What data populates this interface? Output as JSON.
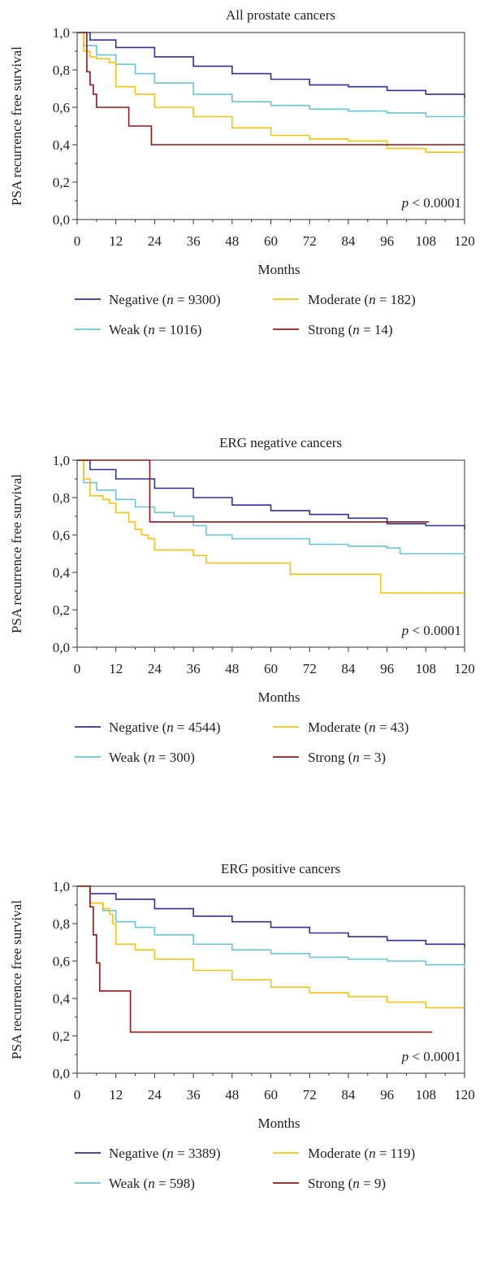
{
  "chart_data": [
    {
      "type": "line",
      "title": "All prostate cancers",
      "xlabel": "Months",
      "ylabel": "PSA recurrence free survival",
      "xlim": [
        0,
        120
      ],
      "ylim": [
        0,
        1
      ],
      "xticks": [
        "0",
        "12",
        "24",
        "36",
        "48",
        "60",
        "72",
        "84",
        "96",
        "108",
        "120"
      ],
      "yticks": [
        "0,0",
        "0,2",
        "0,4",
        "0,6",
        "0,8",
        "1,0"
      ],
      "pvalue": {
        "symbol": "p",
        "text": "< 0.0001"
      },
      "legend_placement": "bottom",
      "series": [
        {
          "name": "Negative",
          "n_label": "n",
          "n_text": "= 9300",
          "color": "#2e3192",
          "x": [
            0,
            4,
            12,
            24,
            36,
            48,
            60,
            72,
            84,
            96,
            108,
            120
          ],
          "y": [
            1.0,
            0.96,
            0.92,
            0.87,
            0.82,
            0.78,
            0.75,
            0.72,
            0.71,
            0.69,
            0.67,
            0.65
          ]
        },
        {
          "name": "Weak",
          "n_label": "n",
          "n_text": "= 1016",
          "color": "#6cc5d3",
          "x": [
            0,
            2,
            6,
            12,
            18,
            24,
            36,
            48,
            60,
            72,
            84,
            96,
            108,
            120
          ],
          "y": [
            1.0,
            0.93,
            0.88,
            0.83,
            0.78,
            0.73,
            0.67,
            0.63,
            0.61,
            0.59,
            0.58,
            0.57,
            0.55,
            0.53
          ]
        },
        {
          "name": "Moderate",
          "n_label": "n",
          "n_text": "= 182",
          "color": "#f2c315",
          "x": [
            0,
            2,
            4,
            6,
            10,
            12,
            18,
            24,
            36,
            48,
            60,
            72,
            84,
            96,
            108,
            120
          ],
          "y": [
            1.0,
            0.9,
            0.87,
            0.86,
            0.84,
            0.71,
            0.67,
            0.6,
            0.55,
            0.49,
            0.45,
            0.43,
            0.42,
            0.38,
            0.36,
            0.36
          ]
        },
        {
          "name": "Strong",
          "n_label": "n",
          "n_text": "= 14",
          "color": "#8b1a1a",
          "step": true,
          "x": [
            0,
            3,
            4,
            5,
            6,
            16,
            23,
            120
          ],
          "y": [
            1.0,
            0.79,
            0.72,
            0.67,
            0.6,
            0.5,
            0.4,
            0.4
          ]
        }
      ]
    },
    {
      "type": "line",
      "title": "ERG negative cancers",
      "xlabel": "Months",
      "ylabel": "PSA recurrence free survival",
      "xlim": [
        0,
        120
      ],
      "ylim": [
        0,
        1
      ],
      "xticks": [
        "0",
        "12",
        "24",
        "36",
        "48",
        "60",
        "72",
        "84",
        "96",
        "108",
        "120"
      ],
      "yticks": [
        "0,0",
        "0,2",
        "0,4",
        "0,6",
        "0,8",
        "1,0"
      ],
      "pvalue": {
        "symbol": "p",
        "text": "< 0.0001"
      },
      "legend_placement": "bottom",
      "series": [
        {
          "name": "Negative",
          "n_label": "n",
          "n_text": "= 4544",
          "color": "#2e3192",
          "x": [
            0,
            4,
            12,
            24,
            36,
            48,
            60,
            72,
            84,
            96,
            108,
            120
          ],
          "y": [
            1.0,
            0.95,
            0.9,
            0.85,
            0.8,
            0.76,
            0.73,
            0.71,
            0.69,
            0.66,
            0.65,
            0.63
          ]
        },
        {
          "name": "Weak",
          "n_label": "n",
          "n_text": "= 300",
          "color": "#6cc5d3",
          "x": [
            0,
            2,
            6,
            12,
            18,
            24,
            30,
            36,
            40,
            48,
            60,
            70,
            72,
            84,
            96,
            100,
            108,
            120
          ],
          "y": [
            1.0,
            0.88,
            0.84,
            0.79,
            0.75,
            0.72,
            0.7,
            0.65,
            0.6,
            0.58,
            0.58,
            0.58,
            0.55,
            0.54,
            0.53,
            0.5,
            0.5,
            0.49
          ]
        },
        {
          "name": "Moderate",
          "n_label": "n",
          "n_text": "= 43",
          "color": "#f2c315",
          "x": [
            0,
            2,
            4,
            6,
            8,
            10,
            12,
            16,
            18,
            20,
            22,
            24,
            30,
            36,
            40,
            66,
            80,
            94,
            120
          ],
          "y": [
            1.0,
            0.9,
            0.81,
            0.81,
            0.79,
            0.77,
            0.72,
            0.67,
            0.63,
            0.6,
            0.58,
            0.52,
            0.52,
            0.49,
            0.45,
            0.39,
            0.39,
            0.29,
            0.29
          ]
        },
        {
          "name": "Strong",
          "n_label": "n",
          "n_text": "= 3",
          "color": "#8b1a1a",
          "step": true,
          "x": [
            0,
            22.5,
            109
          ],
          "y": [
            1.0,
            0.67,
            0.67
          ]
        }
      ]
    },
    {
      "type": "line",
      "title": "ERG positive cancers",
      "xlabel": "Months",
      "ylabel": "PSA recurrence free survival",
      "xlim": [
        0,
        120
      ],
      "ylim": [
        0,
        1
      ],
      "xticks": [
        "0",
        "12",
        "24",
        "36",
        "48",
        "60",
        "72",
        "84",
        "96",
        "108",
        "120"
      ],
      "yticks": [
        "0,0",
        "0,2",
        "0,4",
        "0,6",
        "0,8",
        "1,0"
      ],
      "pvalue": {
        "symbol": "p",
        "text": "< 0.0001"
      },
      "legend_placement": "bottom",
      "series": [
        {
          "name": "Negative",
          "n_label": "n",
          "n_text": "= 3389",
          "color": "#2e3192",
          "x": [
            0,
            4,
            12,
            24,
            36,
            48,
            60,
            72,
            84,
            96,
            108,
            120
          ],
          "y": [
            1.0,
            0.96,
            0.93,
            0.88,
            0.84,
            0.81,
            0.78,
            0.75,
            0.73,
            0.71,
            0.69,
            0.67
          ]
        },
        {
          "name": "Weak",
          "n_label": "n",
          "n_text": "= 598",
          "color": "#6cc5d3",
          "x": [
            0,
            4,
            8,
            12,
            18,
            24,
            36,
            48,
            60,
            72,
            84,
            96,
            108,
            120
          ],
          "y": [
            1.0,
            0.91,
            0.87,
            0.81,
            0.78,
            0.74,
            0.69,
            0.66,
            0.64,
            0.62,
            0.61,
            0.6,
            0.58,
            0.56
          ]
        },
        {
          "name": "Moderate",
          "n_label": "n",
          "n_text": "= 119",
          "color": "#f2c315",
          "x": [
            0,
            4,
            8,
            10,
            11,
            12,
            18,
            24,
            36,
            48,
            60,
            72,
            84,
            96,
            108,
            120
          ],
          "y": [
            1.0,
            0.91,
            0.88,
            0.85,
            0.8,
            0.69,
            0.66,
            0.61,
            0.55,
            0.5,
            0.46,
            0.43,
            0.41,
            0.38,
            0.35,
            0.35
          ]
        },
        {
          "name": "Strong",
          "n_label": "n",
          "n_text": "= 9",
          "color": "#8b1a1a",
          "step": true,
          "x": [
            0,
            4,
            5,
            6,
            7,
            16.5,
            110
          ],
          "y": [
            1.0,
            0.89,
            0.74,
            0.59,
            0.44,
            0.22,
            0.22
          ]
        }
      ]
    }
  ]
}
